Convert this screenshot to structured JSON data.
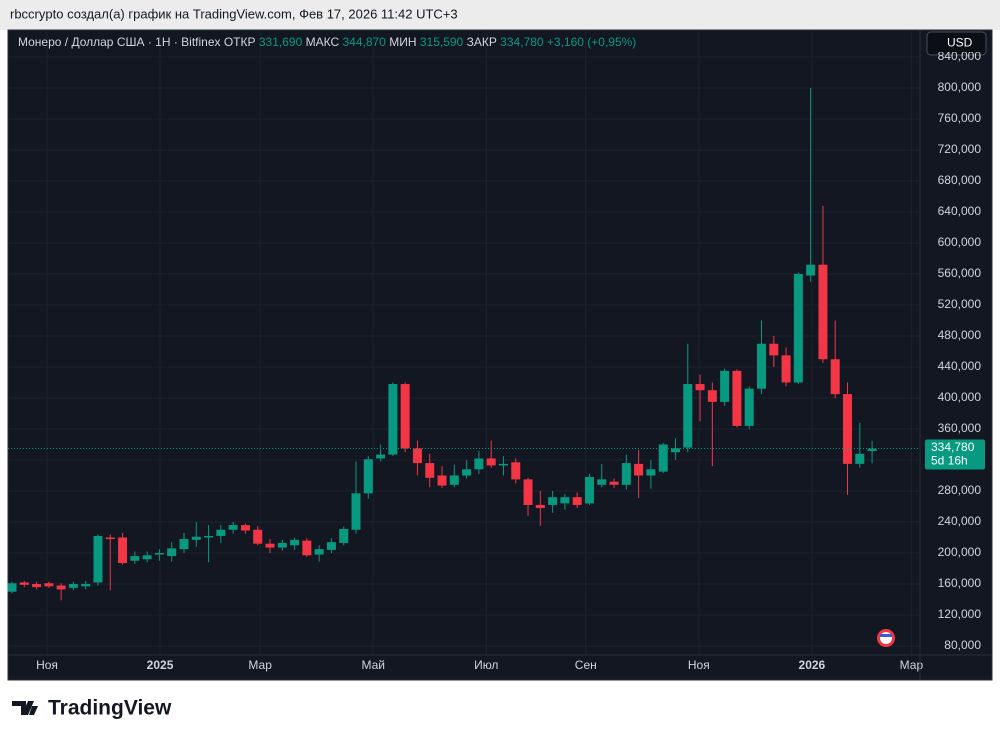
{
  "page_header": "rbccrypto создал(а) график на TradingView.com, Фев 17, 2026 11:42 UTC+3",
  "chart_data": {
    "type": "candlestick",
    "symbol": "Монеро / Доллар США · 1H · Bitfinex",
    "legend": {
      "open_label": "ОТКР",
      "open": "331,690",
      "high_label": "МАКС",
      "high": "344,870",
      "low_label": "МИН",
      "low": "315,590",
      "close_label": "ЗАКР",
      "close": "334,780",
      "change": "+3,160 (+0,95%)"
    },
    "currency": "USD",
    "last_price": {
      "value": 334780,
      "label": "334,780"
    },
    "countdown": "5d 16h",
    "up_color": "#089981",
    "down_color": "#f23645",
    "grid": true,
    "open": [
      150000,
      162000,
      160000,
      161000,
      158000,
      155000,
      157000,
      162000,
      220000,
      220000,
      190000,
      192000,
      198000,
      196000,
      205000,
      217000,
      220000,
      222000,
      230000,
      236000,
      230000,
      212000,
      207000,
      210000,
      216000,
      198000,
      204000,
      213000,
      230000,
      277000,
      322000,
      327000,
      418000,
      335000,
      316000,
      300000,
      288000,
      300000,
      308000,
      322000,
      313000,
      317000,
      295000,
      262000,
      262000,
      264000,
      272000,
      264000,
      288000,
      292000,
      288000,
      315000,
      300000,
      305000,
      330000,
      336000,
      418000,
      410000,
      395000,
      435000,
      364000,
      412000,
      470000,
      455000,
      420000,
      558000,
      572000,
      450000,
      405000,
      315000,
      331690
    ],
    "high": [
      163000,
      164000,
      163000,
      163000,
      161000,
      163000,
      164000,
      224000,
      224000,
      226000,
      202000,
      202000,
      205000,
      214000,
      226000,
      240000,
      236000,
      236000,
      240000,
      238000,
      235000,
      218000,
      217000,
      220000,
      219000,
      210000,
      219000,
      234000,
      318000,
      325000,
      340000,
      420000,
      420000,
      345000,
      328000,
      312000,
      314000,
      320000,
      332000,
      345000,
      325000,
      322000,
      297000,
      280000,
      280000,
      276000,
      278000,
      302000,
      315000,
      296000,
      327000,
      333000,
      320000,
      342000,
      348000,
      470000,
      430000,
      420000,
      438000,
      437000,
      415000,
      500000,
      480000,
      465000,
      562000,
      800000,
      648000,
      500000,
      420000,
      368000,
      344870
    ],
    "low": [
      148000,
      156000,
      153000,
      155000,
      139000,
      152000,
      153000,
      158000,
      152000,
      185000,
      186000,
      188000,
      190000,
      189000,
      200000,
      208000,
      188000,
      213000,
      225000,
      225000,
      210000,
      200000,
      203000,
      204000,
      195000,
      189000,
      200000,
      210000,
      225000,
      270000,
      318000,
      325000,
      330000,
      300000,
      285000,
      284000,
      285000,
      296000,
      302000,
      310000,
      300000,
      290000,
      248000,
      235000,
      252000,
      256000,
      258000,
      262000,
      285000,
      284000,
      282000,
      271000,
      283000,
      303000,
      320000,
      330000,
      370000,
      312000,
      390000,
      362000,
      360000,
      405000,
      440000,
      415000,
      418000,
      550000,
      445000,
      400000,
      275000,
      310000,
      315590
    ],
    "close": [
      161000,
      159000,
      156000,
      157000,
      153000,
      160000,
      160000,
      222000,
      218000,
      187000,
      196000,
      197000,
      200000,
      206000,
      218000,
      221000,
      222000,
      230000,
      236000,
      229000,
      212000,
      207000,
      213000,
      217000,
      197000,
      205000,
      214000,
      231000,
      277000,
      321000,
      327000,
      418000,
      335000,
      316000,
      297000,
      287000,
      300000,
      308000,
      322000,
      313000,
      315000,
      295000,
      262000,
      258000,
      272000,
      272000,
      262000,
      298000,
      295000,
      288000,
      316000,
      300000,
      308000,
      340000,
      335000,
      418000,
      410000,
      395000,
      435000,
      364000,
      412000,
      470000,
      455000,
      420000,
      560000,
      572000,
      450000,
      405000,
      315000,
      328000,
      334780
    ],
    "xlim": [
      -0.16,
      73.9
    ],
    "xticks": [
      {
        "value": 2.85,
        "label": "Ноя"
      },
      {
        "value": 12.05,
        "label": "2025"
      },
      {
        "value": 20.2,
        "label": "Мар"
      },
      {
        "value": 29.4,
        "label": "Май"
      },
      {
        "value": 38.6,
        "label": "Июл"
      },
      {
        "value": 46.7,
        "label": "Сен"
      },
      {
        "value": 55.9,
        "label": "Ноя"
      },
      {
        "value": 65.1,
        "label": "2026"
      },
      {
        "value": 73.2,
        "label": "Мар"
      }
    ],
    "ylim": [
      68400,
      846400
    ],
    "yticks": [
      {
        "value": 80000,
        "label": "80,000"
      },
      {
        "value": 120000,
        "label": "120,000"
      },
      {
        "value": 160000,
        "label": "160,000"
      },
      {
        "value": 200000,
        "label": "200,000"
      },
      {
        "value": 240000,
        "label": "240,000"
      },
      {
        "value": 280000,
        "label": "280,000"
      },
      {
        "value": 320000,
        "label": "320,000"
      },
      {
        "value": 360000,
        "label": "360,000"
      },
      {
        "value": 400000,
        "label": "400,000"
      },
      {
        "value": 440000,
        "label": "440,000"
      },
      {
        "value": 480000,
        "label": "480,000"
      },
      {
        "value": 520000,
        "label": "520,000"
      },
      {
        "value": 560000,
        "label": "560,000"
      },
      {
        "value": 600000,
        "label": "600,000"
      },
      {
        "value": 640000,
        "label": "640,000"
      },
      {
        "value": 680000,
        "label": "680,000"
      },
      {
        "value": 720000,
        "label": "720,000"
      },
      {
        "value": 760000,
        "label": "760,000"
      },
      {
        "value": 800000,
        "label": "800,000"
      },
      {
        "value": 840000,
        "label": "840,000"
      }
    ]
  },
  "footer_logo": "TradingView"
}
